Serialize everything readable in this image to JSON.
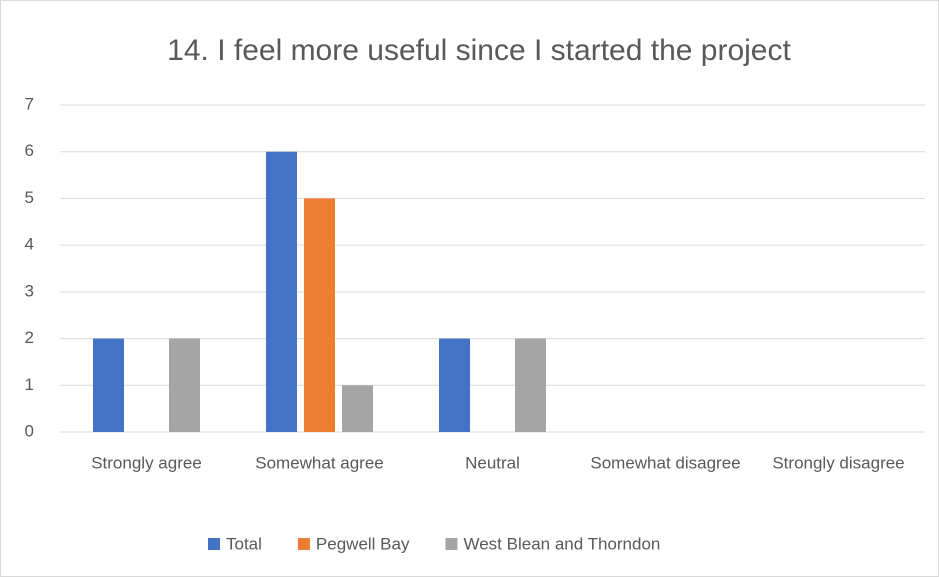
{
  "chart_data": {
    "type": "bar",
    "title": "14. I feel more useful since I started the project",
    "categories": [
      "Strongly agree",
      "Somewhat agree",
      "Neutral",
      "Somewhat disagree",
      "Strongly disagree"
    ],
    "series": [
      {
        "name": "Total",
        "color": "#4472c4",
        "values": [
          2,
          6,
          2,
          0,
          0
        ]
      },
      {
        "name": "Pegwell Bay",
        "color": "#ed7d31",
        "values": [
          0,
          5,
          0,
          0,
          0
        ]
      },
      {
        "name": "West Blean and Thorndon",
        "color": "#a5a5a5",
        "values": [
          2,
          1,
          2,
          0,
          0
        ]
      }
    ],
    "ylim": [
      0,
      7
    ],
    "yticks": [
      0,
      1,
      2,
      3,
      4,
      5,
      6,
      7
    ],
    "grid": true,
    "legend": "bottom"
  }
}
